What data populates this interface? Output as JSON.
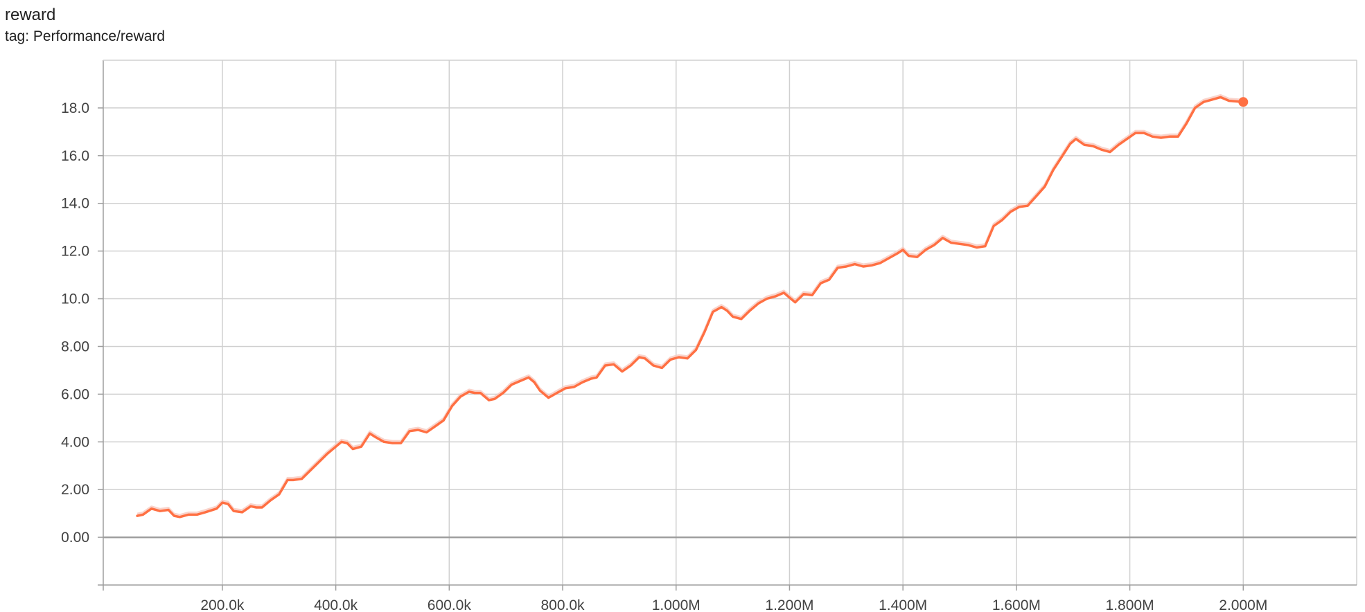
{
  "card": {
    "title": "reward",
    "tag": "tag: Performance/reward"
  },
  "colors": {
    "series": "#ff7043",
    "series_raw": "#f8c9bf",
    "grid": "#d0d0d0",
    "axis": "#9e9e9e",
    "zero_line": "#9e9e9e"
  },
  "chart_data": {
    "type": "line",
    "title": "reward",
    "xlabel": "",
    "ylabel": "",
    "xlim": [
      -10000,
      2200000
    ],
    "ylim": [
      -2,
      20
    ],
    "grid": true,
    "xticks": [
      200000,
      400000,
      600000,
      800000,
      1000000,
      1200000,
      1400000,
      1600000,
      1800000,
      2000000
    ],
    "xtick_labels": [
      "200.0k",
      "400.0k",
      "600.0k",
      "800.0k",
      "1.000M",
      "1.200M",
      "1.400M",
      "1.600M",
      "1.800M",
      "2.000M"
    ],
    "yticks": [
      0,
      2,
      4,
      6,
      8,
      10,
      12,
      14,
      16,
      18
    ],
    "ytick_labels": [
      "0.00",
      "2.00",
      "4.00",
      "6.00",
      "8.00",
      "10.0",
      "12.0",
      "14.0",
      "16.0",
      "18.0"
    ],
    "series": [
      {
        "smoothed": true,
        "x": [
          50000,
          60000,
          75000,
          90000,
          105000,
          115000,
          125000,
          140000,
          155000,
          170000,
          190000,
          200000,
          210000,
          220000,
          235000,
          250000,
          260000,
          270000,
          285000,
          300000,
          315000,
          325000,
          340000,
          355000,
          370000,
          385000,
          400000,
          410000,
          420000,
          430000,
          445000,
          460000,
          470000,
          485000,
          500000,
          515000,
          530000,
          545000,
          560000,
          575000,
          590000,
          605000,
          620000,
          635000,
          645000,
          655000,
          670000,
          680000,
          695000,
          710000,
          725000,
          740000,
          750000,
          760000,
          775000,
          790000,
          805000,
          820000,
          835000,
          850000,
          860000,
          875000,
          890000,
          905000,
          920000,
          935000,
          945000,
          960000,
          975000,
          990000,
          1005000,
          1020000,
          1035000,
          1050000,
          1065000,
          1080000,
          1090000,
          1100000,
          1115000,
          1130000,
          1145000,
          1160000,
          1175000,
          1190000,
          1200000,
          1210000,
          1225000,
          1240000,
          1255000,
          1270000,
          1285000,
          1300000,
          1315000,
          1330000,
          1345000,
          1360000,
          1375000,
          1390000,
          1400000,
          1410000,
          1425000,
          1440000,
          1455000,
          1470000,
          1485000,
          1500000,
          1515000,
          1530000,
          1545000,
          1560000,
          1575000,
          1590000,
          1605000,
          1620000,
          1635000,
          1650000,
          1665000,
          1680000,
          1695000,
          1705000,
          1720000,
          1735000,
          1750000,
          1765000,
          1780000,
          1795000,
          1810000,
          1825000,
          1840000,
          1855000,
          1870000,
          1885000,
          1900000,
          1915000,
          1930000,
          1945000,
          1960000,
          1975000,
          2000000
        ],
        "y": [
          0.9,
          0.95,
          1.2,
          1.1,
          1.15,
          0.9,
          0.85,
          0.95,
          0.95,
          1.05,
          1.2,
          1.45,
          1.4,
          1.1,
          1.05,
          1.3,
          1.25,
          1.25,
          1.55,
          1.8,
          2.4,
          2.4,
          2.45,
          2.8,
          3.15,
          3.5,
          3.8,
          4.0,
          3.95,
          3.7,
          3.8,
          4.35,
          4.2,
          4.0,
          3.95,
          3.95,
          4.45,
          4.5,
          4.4,
          4.65,
          4.9,
          5.5,
          5.9,
          6.1,
          6.05,
          6.05,
          5.75,
          5.8,
          6.05,
          6.4,
          6.55,
          6.7,
          6.5,
          6.15,
          5.85,
          6.05,
          6.25,
          6.3,
          6.5,
          6.65,
          6.7,
          7.2,
          7.25,
          6.95,
          7.2,
          7.55,
          7.5,
          7.2,
          7.1,
          7.45,
          7.55,
          7.5,
          7.85,
          8.6,
          9.45,
          9.65,
          9.5,
          9.25,
          9.15,
          9.5,
          9.8,
          10.0,
          10.1,
          10.25,
          10.05,
          9.85,
          10.2,
          10.15,
          10.65,
          10.8,
          11.3,
          11.35,
          11.45,
          11.35,
          11.4,
          11.5,
          11.7,
          11.9,
          12.05,
          11.8,
          11.75,
          12.05,
          12.25,
          12.55,
          12.35,
          12.3,
          12.25,
          12.15,
          12.2,
          13.05,
          13.3,
          13.65,
          13.85,
          13.9,
          14.3,
          14.7,
          15.4,
          15.95,
          16.5,
          16.7,
          16.45,
          16.4,
          16.25,
          16.15,
          16.45,
          16.7,
          16.95,
          16.95,
          16.8,
          16.75,
          16.8,
          16.8,
          17.35,
          18.0,
          18.25,
          18.35,
          18.45,
          18.3,
          18.25
        ]
      }
    ],
    "last_point": {
      "x": 2000000,
      "y": 18.25
    }
  }
}
